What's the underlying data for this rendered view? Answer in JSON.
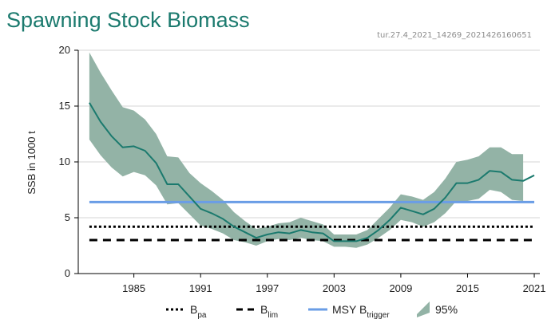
{
  "title": "Spawning Stock Biomass",
  "subtitle": "tur.27.4_2021_14269_2021426160651",
  "chart_data": {
    "type": "line",
    "ylabel": "SSB in 1000 t",
    "xlim": [
      1980,
      2021.5
    ],
    "ylim": [
      0,
      20
    ],
    "yticks": [
      "0",
      "5",
      "10",
      "15",
      "20"
    ],
    "xticks": [
      "1985",
      "1991",
      "1997",
      "2003",
      "2009",
      "2015",
      "2021"
    ],
    "x": [
      1981,
      1982,
      1983,
      1984,
      1985,
      1986,
      1987,
      1988,
      1989,
      1990,
      1991,
      1992,
      1993,
      1994,
      1995,
      1996,
      1997,
      1998,
      1999,
      2000,
      2001,
      2002,
      2003,
      2004,
      2005,
      2006,
      2007,
      2008,
      2009,
      2010,
      2011,
      2012,
      2013,
      2014,
      2015,
      2016,
      2017,
      2018,
      2019,
      2020,
      2021
    ],
    "ssb": [
      15.3,
      13.6,
      12.3,
      11.3,
      11.4,
      11.0,
      9.9,
      8.0,
      8.0,
      6.9,
      5.8,
      5.4,
      4.9,
      4.2,
      3.7,
      3.2,
      3.5,
      3.7,
      3.6,
      3.9,
      3.7,
      3.6,
      2.9,
      2.9,
      2.9,
      3.2,
      3.9,
      4.8,
      5.9,
      5.6,
      5.3,
      5.8,
      6.8,
      8.1,
      8.1,
      8.4,
      9.2,
      9.1,
      8.4,
      8.3,
      8.8
    ],
    "upper": [
      19.8,
      18.0,
      16.4,
      14.9,
      14.6,
      13.8,
      12.5,
      10.5,
      10.4,
      9.0,
      8.1,
      7.4,
      6.6,
      5.5,
      4.7,
      4.0,
      4.2,
      4.5,
      4.6,
      5.0,
      4.7,
      4.4,
      3.5,
      3.5,
      3.5,
      3.9,
      4.9,
      5.9,
      7.1,
      6.9,
      6.6,
      7.3,
      8.5,
      10.0,
      10.2,
      10.5,
      11.3,
      11.3,
      10.7,
      10.7,
      null
    ],
    "lower": [
      12.0,
      10.6,
      9.5,
      8.7,
      9.1,
      8.8,
      7.9,
      6.2,
      6.3,
      5.3,
      4.3,
      4.0,
      3.6,
      3.0,
      2.8,
      2.5,
      2.9,
      3.1,
      3.0,
      3.2,
      3.0,
      2.9,
      2.4,
      2.4,
      2.3,
      2.6,
      3.2,
      3.9,
      4.8,
      4.6,
      4.2,
      4.6,
      5.4,
      6.5,
      6.5,
      6.7,
      7.5,
      7.3,
      6.6,
      6.5,
      null
    ],
    "reference_lines": {
      "Bpa": 4.2,
      "Blim": 3.0,
      "MSY_Btrigger": 6.4
    },
    "legend": [
      {
        "main": "B",
        "sub": "pa",
        "style": "dotted"
      },
      {
        "main": "B",
        "sub": "lim",
        "style": "dashed"
      },
      {
        "main": "MSY B",
        "sub": "trigger",
        "style": "solid-blue"
      },
      {
        "main": "95%",
        "sub": "",
        "style": "area"
      }
    ],
    "colors": {
      "line": "#1b7a6e",
      "band": "#93b3a6",
      "msy": "#6a9de6",
      "grid": "#d6d6d6"
    }
  }
}
